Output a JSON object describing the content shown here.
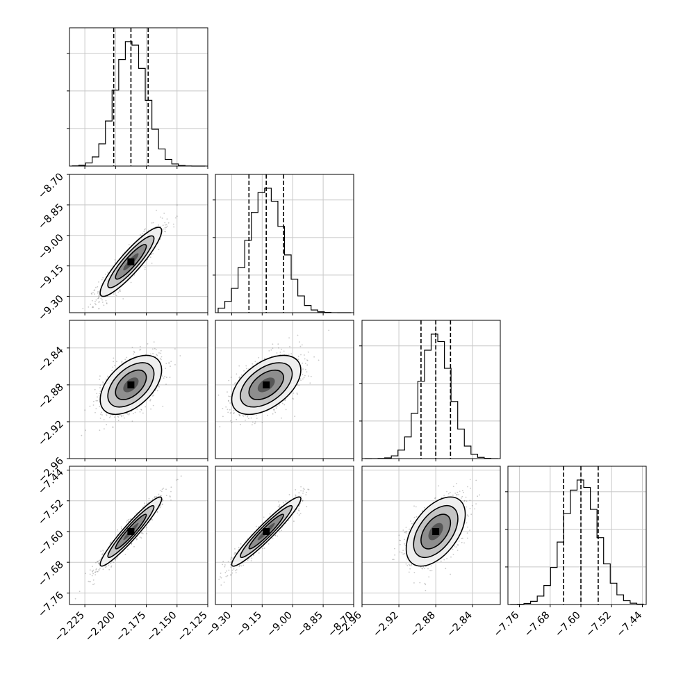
{
  "chart_data": {
    "type": "corner",
    "grid": true,
    "colors": {
      "line": "#000000",
      "grid": "#c8c8c8",
      "points": "#606060"
    },
    "parameters": [
      {
        "range": [
          -2.2375,
          -2.125
        ],
        "ticks": [
          "−2.225",
          "−2.200",
          "−2.175",
          "−2.150",
          "−2.125"
        ],
        "tick_values": [
          -2.225,
          -2.2,
          -2.175,
          -2.15,
          -2.125
        ],
        "quantiles": [
          -2.2015,
          -2.1875,
          -2.1735
        ],
        "mean": -2.1875,
        "sd": 0.0125
      },
      {
        "range": [
          -9.38,
          -8.7
        ],
        "ticks": [
          "−9.30",
          "−9.15",
          "−9.00",
          "−8.85",
          "−8.70"
        ],
        "tick_values": [
          -9.3,
          -9.15,
          -9.0,
          -8.85,
          -8.7
        ],
        "quantiles": [
          -9.215,
          -9.13,
          -9.045
        ],
        "mean": -9.13,
        "sd": 0.085
      },
      {
        "range": [
          -2.96,
          -2.81
        ],
        "ticks": [
          "−2.96",
          "−2.92",
          "−2.88",
          "−2.84"
        ],
        "tick_values": [
          -2.96,
          -2.92,
          -2.88,
          -2.84
        ],
        "quantiles": [
          -2.896,
          -2.88,
          -2.864
        ],
        "mean": -2.88,
        "sd": 0.016
      },
      {
        "range": [
          -7.79,
          -7.43
        ],
        "ticks": [
          "−7.76",
          "−7.68",
          "−7.60",
          "−7.52",
          "−7.44"
        ],
        "tick_values": [
          -7.76,
          -7.68,
          -7.6,
          -7.52,
          -7.44
        ],
        "quantiles": [
          -7.645,
          -7.6,
          -7.555
        ],
        "mean": -7.6,
        "sd": 0.045
      }
    ],
    "correlations": {
      "1-0": 0.9,
      "2-0": 0.5,
      "2-1": 0.5,
      "3-0": 0.95,
      "3-1": 0.95,
      "3-2": 0.5
    },
    "histogram_bins": 20,
    "contour_levels": [
      0.5,
      1.0,
      1.5,
      2.0
    ]
  }
}
